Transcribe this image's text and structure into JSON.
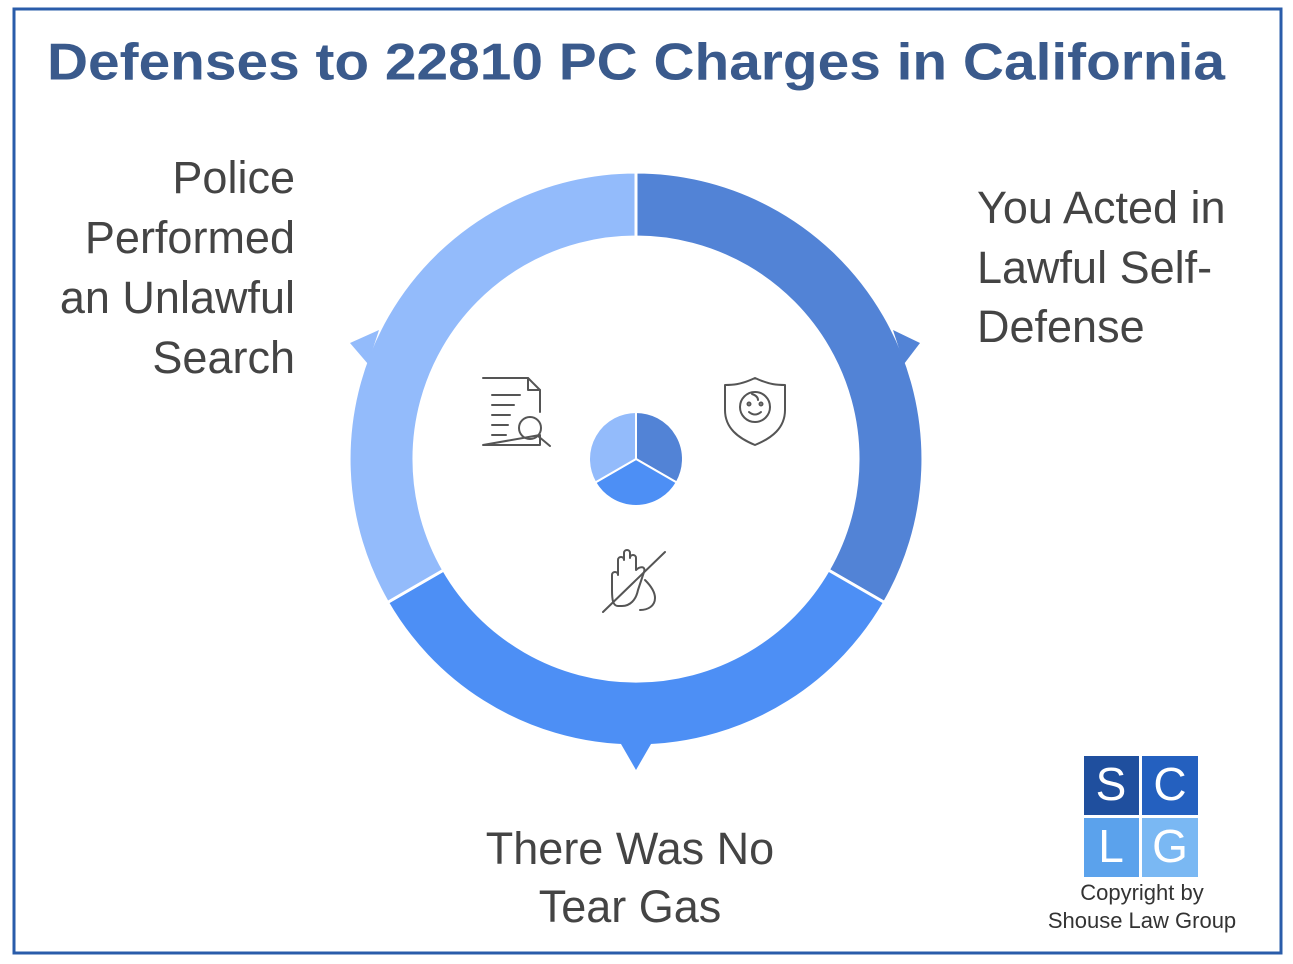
{
  "title": "Defenses to 22810 PC Charges in California",
  "segments": [
    {
      "lines": [
        "Police",
        "Performed",
        "an Unlawful",
        "Search"
      ]
    },
    {
      "lines": [
        "You Acted in",
        "Lawful Self-",
        "Defense"
      ]
    },
    {
      "lines": [
        "There Was No",
        "Tear Gas"
      ]
    }
  ],
  "logo": {
    "letters": [
      "S",
      "C",
      "L",
      "G"
    ]
  },
  "copyright": [
    "Copyright by",
    "Shouse Law Group"
  ]
}
